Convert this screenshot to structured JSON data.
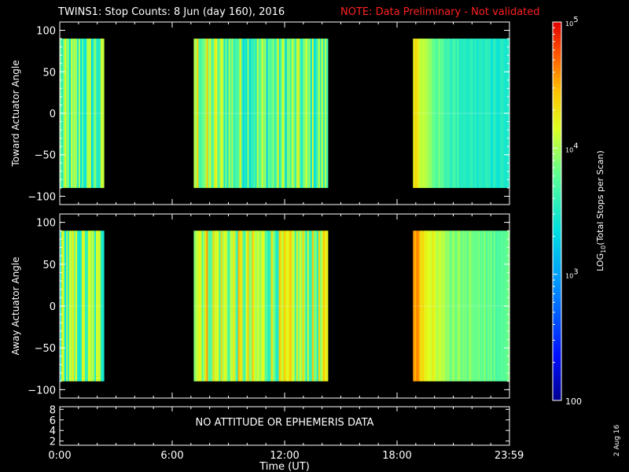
{
  "header": {
    "title": "TWINS1: Stop Counts:  8 Jun (day 160), 2016",
    "note": "NOTE: Data Preliminary - Not validated",
    "note_color": "#ff2020"
  },
  "footer": {
    "stamp": "2 Aug 16"
  },
  "chart_data": [
    {
      "type": "heatmap",
      "panel": "toward",
      "ylabel": "Toward Actuator Angle",
      "ylim": [
        -110,
        110
      ],
      "yticks": [
        -100,
        -50,
        0,
        50,
        100
      ],
      "ytick_labels": [
        "−100",
        "−50",
        "0",
        "50",
        "100"
      ],
      "xlim_hours": [
        0,
        24
      ],
      "data_y_range": [
        -90,
        90
      ],
      "segments": [
        {
          "start_hour": 0.0,
          "end_hour": 2.35,
          "level": 3.7
        },
        {
          "start_hour": 7.15,
          "end_hour": 14.3,
          "level": 3.75
        },
        {
          "start_hour": 18.85,
          "end_hour": 24.0,
          "level": 3.45
        }
      ],
      "colorscale": "log10",
      "zlim": [
        100,
        100000
      ]
    },
    {
      "type": "heatmap",
      "panel": "away",
      "ylabel": "Away Actuator Angle",
      "ylim": [
        -110,
        110
      ],
      "yticks": [
        -100,
        -50,
        0,
        50,
        100
      ],
      "ytick_labels": [
        "−100",
        "−50",
        "0",
        "50",
        "100"
      ],
      "xlim_hours": [
        0,
        24
      ],
      "data_y_range": [
        -90,
        90
      ],
      "segments": [
        {
          "start_hour": 0.0,
          "end_hour": 2.35,
          "level": 3.8
        },
        {
          "start_hour": 7.15,
          "end_hour": 14.3,
          "level": 3.95
        },
        {
          "start_hour": 18.85,
          "end_hour": 24.0,
          "level": 3.75
        }
      ],
      "colorscale": "log10",
      "zlim": [
        100,
        100000
      ]
    }
  ],
  "info_panel": {
    "message": "NO ATTITUDE OR EPHEMERIS DATA",
    "yticks": [
      "2",
      "4",
      "6",
      "8"
    ]
  },
  "xaxis": {
    "label": "Time (UT)",
    "tick_hours": [
      0,
      6,
      12,
      18,
      23.983
    ],
    "tick_labels": [
      "0:00",
      "6:00",
      "12:00",
      "18:00",
      "23:59"
    ]
  },
  "colorbar": {
    "label": "LOG10(Total Stops per Scan)",
    "label_base": "LOG",
    "label_sub": "10",
    "label_rest": "(Total Stops per Scan)",
    "ticks": [
      {
        "value": 100,
        "base": "100",
        "exp": ""
      },
      {
        "value": 1000,
        "base": "10",
        "exp": "3"
      },
      {
        "value": 10000,
        "base": "10",
        "exp": "4"
      },
      {
        "value": 100000,
        "base": "10",
        "exp": "5"
      }
    ]
  }
}
